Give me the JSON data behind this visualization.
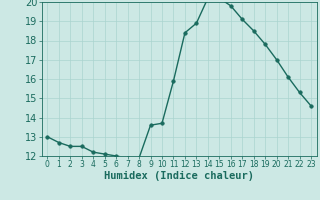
{
  "xlabel": "Humidex (Indice chaleur)",
  "x": [
    0,
    1,
    2,
    3,
    4,
    5,
    6,
    7,
    8,
    9,
    10,
    11,
    12,
    13,
    14,
    15,
    16,
    17,
    18,
    19,
    20,
    21,
    22,
    23
  ],
  "y": [
    13.0,
    12.7,
    12.5,
    12.5,
    12.2,
    12.1,
    12.0,
    11.9,
    11.9,
    13.6,
    13.7,
    15.9,
    18.4,
    18.9,
    20.2,
    20.2,
    19.8,
    19.1,
    18.5,
    17.8,
    17.0,
    16.1,
    15.3,
    14.6
  ],
  "ylim": [
    12,
    20
  ],
  "xlim_min": -0.5,
  "xlim_max": 23.5,
  "yticks": [
    12,
    13,
    14,
    15,
    16,
    17,
    18,
    19,
    20
  ],
  "xticks": [
    0,
    1,
    2,
    3,
    4,
    5,
    6,
    7,
    8,
    9,
    10,
    11,
    12,
    13,
    14,
    15,
    16,
    17,
    18,
    19,
    20,
    21,
    22,
    23
  ],
  "line_color": "#1a6b5e",
  "marker_color": "#1a6b5e",
  "bg_color": "#cce8e4",
  "grid_color": "#aad4cf",
  "tick_color": "#1a6b5e",
  "xlabel_fontsize": 7.5,
  "ytick_fontsize": 7,
  "xtick_fontsize": 5.5,
  "linewidth": 1.0,
  "markersize": 2.5
}
